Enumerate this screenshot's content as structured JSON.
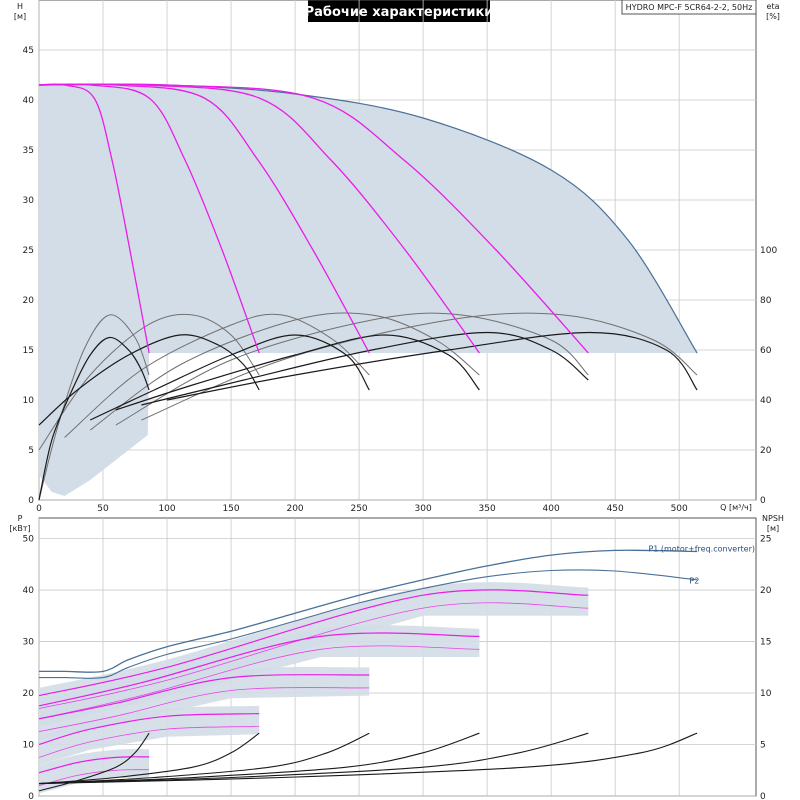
{
  "title": "Рабочие характеристики",
  "model_label": "HYDRO MPC-F 5CR64-2-2, 50Hz",
  "colors": {
    "envelope_fill": "#d3dde7",
    "envelope_edge": "#4a7098",
    "speed_curve": "#e81ee8",
    "efficiency_dark": "#1a1a1a",
    "efficiency_gray": "#707070",
    "grid": "#c8c8c8",
    "label_blue": "#2a4f7c",
    "title_bg": "#000000",
    "title_text": "#ffffff"
  },
  "chart_data": [
    {
      "type": "line",
      "name": "head-efficiency",
      "xlabel": "Q [м³/ч]",
      "ylabel_left": "H",
      "yunit_left": "[м]",
      "ylabel_right": "eta",
      "yunit_right": "[%]",
      "xlim": [
        0,
        560
      ],
      "ylim_left": [
        0,
        50
      ],
      "ylim_right": [
        0,
        200
      ],
      "x_ticks": [
        0,
        50,
        100,
        150,
        200,
        250,
        300,
        350,
        400,
        450,
        500
      ],
      "y_ticks_left": [
        0,
        5,
        10,
        15,
        20,
        25,
        30,
        35,
        40,
        45
      ],
      "y_ticks_right": [
        0,
        20,
        40,
        60,
        80,
        100
      ],
      "grid": true,
      "envelope": {
        "top": [
          [
            0,
            41.5
          ],
          [
            100,
            41.5
          ],
          [
            200,
            40.6
          ],
          [
            300,
            38.2
          ],
          [
            400,
            33.0
          ],
          [
            460,
            26.0
          ],
          [
            514,
            14.7
          ]
        ],
        "bottom_H": 14.7,
        "low_band": [
          [
            0,
            2.5
          ],
          [
            10,
            0.8
          ],
          [
            20,
            0.4
          ],
          [
            40,
            2.0
          ],
          [
            55,
            3.5
          ],
          [
            70,
            5.0
          ],
          [
            85,
            6.5
          ]
        ]
      },
      "head_curves": [
        {
          "x": [
            0,
            20,
            43,
            57,
            71,
            86
          ],
          "y": [
            41.5,
            41.5,
            40.2,
            34,
            25,
            14.7
          ]
        },
        {
          "x": [
            0,
            40,
            86,
            114,
            143,
            172
          ],
          "y": [
            41.5,
            41.5,
            40.2,
            34,
            25,
            14.7
          ]
        },
        {
          "x": [
            0,
            60,
            129,
            171,
            214,
            258
          ],
          "y": [
            41.5,
            41.5,
            40.2,
            34,
            25,
            14.7
          ]
        },
        {
          "x": [
            0,
            80,
            172,
            228,
            286,
            344
          ],
          "y": [
            41.5,
            41.5,
            40.2,
            34,
            25,
            14.7
          ]
        },
        {
          "x": [
            0,
            100,
            214,
            285,
            357,
            429
          ],
          "y": [
            41.5,
            41.5,
            40.2,
            34,
            25,
            14.7
          ]
        }
      ],
      "efficiency_curves_dark": [
        {
          "x": [
            0,
            10,
            25,
            40,
            55,
            70,
            80,
            86
          ],
          "y": [
            0,
            24,
            43,
            58,
            65,
            60,
            52,
            44
          ]
        },
        {
          "x": [
            0,
            30,
            70,
            110,
            140,
            160,
            172
          ],
          "y": [
            30,
            44,
            58,
            66,
            62,
            54,
            44
          ]
        },
        {
          "x": [
            40,
            90,
            150,
            200,
            240,
            258
          ],
          "y": [
            32,
            44,
            58,
            66,
            58,
            44
          ]
        },
        {
          "x": [
            60,
            120,
            200,
            270,
            320,
            344
          ],
          "y": [
            36,
            46,
            58,
            66,
            58,
            44
          ]
        },
        {
          "x": [
            80,
            160,
            260,
            350,
            400,
            429
          ],
          "y": [
            38,
            48,
            60,
            67,
            60,
            48
          ]
        },
        {
          "x": [
            100,
            200,
            320,
            430,
            490,
            514
          ],
          "y": [
            40,
            50,
            60,
            67,
            60,
            44
          ]
        }
      ],
      "efficiency_curves_gray": [
        {
          "x": [
            0,
            15,
            35,
            55,
            75,
            86
          ],
          "y": [
            0,
            30,
            60,
            74,
            65,
            50
          ]
        },
        {
          "x": [
            0,
            40,
            85,
            120,
            150,
            172
          ],
          "y": [
            20,
            50,
            70,
            74,
            66,
            50
          ]
        },
        {
          "x": [
            20,
            80,
            150,
            190,
            230,
            258
          ],
          "y": [
            25,
            52,
            70,
            74,
            64,
            50
          ]
        },
        {
          "x": [
            40,
            110,
            200,
            260,
            310,
            344
          ],
          "y": [
            28,
            54,
            72,
            74,
            64,
            50
          ]
        },
        {
          "x": [
            60,
            150,
            260,
            330,
            400,
            429
          ],
          "y": [
            30,
            56,
            72,
            74,
            64,
            50
          ]
        },
        {
          "x": [
            80,
            190,
            320,
            410,
            480,
            514
          ],
          "y": [
            32,
            56,
            72,
            74,
            64,
            50
          ]
        }
      ]
    },
    {
      "type": "line",
      "name": "power-npsh",
      "ylabel_left": "P",
      "yunit_left": "[кВт]",
      "ylabel_right": "NPSH",
      "yunit_right": "[м]",
      "xlim": [
        0,
        560
      ],
      "ylim_left": [
        0,
        54
      ],
      "ylim_right": [
        0,
        27
      ],
      "y_ticks_left": [
        0,
        10,
        20,
        30,
        40,
        50
      ],
      "y_ticks_right": [
        0,
        5,
        10,
        15,
        20,
        25
      ],
      "grid": true,
      "legend_labels": [
        {
          "text": "P1 (motor+freq.converter)",
          "at": [
            476,
            47.5
          ]
        },
        {
          "text": "P2",
          "at": [
            508,
            41.3
          ]
        }
      ],
      "p1_top": {
        "x": [
          0,
          20,
          50,
          70,
          100,
          150,
          200,
          250,
          300,
          350,
          400,
          450,
          514
        ],
        "y": [
          24.2,
          24.2,
          24.2,
          26.5,
          29,
          32,
          35.5,
          39,
          42,
          44.7,
          46.8,
          47.7,
          47.5
        ]
      },
      "p2_top": {
        "x": [
          0,
          20,
          50,
          70,
          100,
          150,
          200,
          250,
          300,
          350,
          400,
          450,
          514
        ],
        "y": [
          23,
          23,
          23,
          25,
          27.5,
          30.5,
          34,
          37.5,
          40.3,
          42.6,
          43.8,
          43.7,
          42
        ]
      },
      "power_bands": [
        {
          "x": [
            0,
            40,
            86
          ],
          "y": [
            4,
            6.5,
            8.5
          ],
          "magenta": [
            [
              0,
              4.5
            ],
            [
              30,
              6.5
            ],
            [
              60,
              7.5
            ],
            [
              86,
              7.6
            ]
          ]
        },
        {
          "x": [
            0,
            60,
            172
          ],
          "y": [
            8,
            12,
            15.5
          ],
          "magenta": [
            [
              0,
              10
            ],
            [
              40,
              13
            ],
            [
              100,
              15.5
            ],
            [
              172,
              16
            ]
          ]
        },
        {
          "x": [
            0,
            90,
            258
          ],
          "y": [
            12,
            18,
            23
          ],
          "magenta": [
            [
              0,
              15
            ],
            [
              60,
              18
            ],
            [
              150,
              23
            ],
            [
              258,
              23.5
            ]
          ]
        },
        {
          "x": [
            0,
            120,
            344
          ],
          "y": [
            16,
            23,
            31
          ],
          "magenta": [
            [
              0,
              17.5
            ],
            [
              80,
              22
            ],
            [
              220,
              31
            ],
            [
              344,
              31
            ]
          ]
        },
        {
          "x": [
            0,
            150,
            429
          ],
          "y": [
            18,
            25,
            39
          ],
          "magenta": [
            [
              0,
              19.5
            ],
            [
              100,
              25
            ],
            [
              300,
              39
            ],
            [
              429,
              39
            ]
          ]
        }
      ],
      "npsh_curves": [
        {
          "x": [
            0,
            30,
            60,
            75,
            86
          ],
          "y": [
            0.5,
            1.5,
            2.8,
            4.2,
            6.1
          ]
        },
        {
          "x": [
            0,
            60,
            120,
            150,
            172
          ],
          "y": [
            1.2,
            1.8,
            2.8,
            4.2,
            6.1
          ]
        },
        {
          "x": [
            0,
            90,
            180,
            225,
            258
          ],
          "y": [
            1.2,
            1.8,
            2.8,
            4.2,
            6.1
          ]
        },
        {
          "x": [
            0,
            120,
            240,
            300,
            344
          ],
          "y": [
            1.2,
            1.8,
            2.8,
            4.2,
            6.1
          ]
        },
        {
          "x": [
            0,
            150,
            300,
            375,
            429
          ],
          "y": [
            1.2,
            1.8,
            2.8,
            4.2,
            6.1
          ]
        },
        {
          "x": [
            0,
            190,
            380,
            470,
            514
          ],
          "y": [
            1.2,
            1.8,
            2.8,
            4.2,
            6.1
          ]
        }
      ]
    }
  ]
}
